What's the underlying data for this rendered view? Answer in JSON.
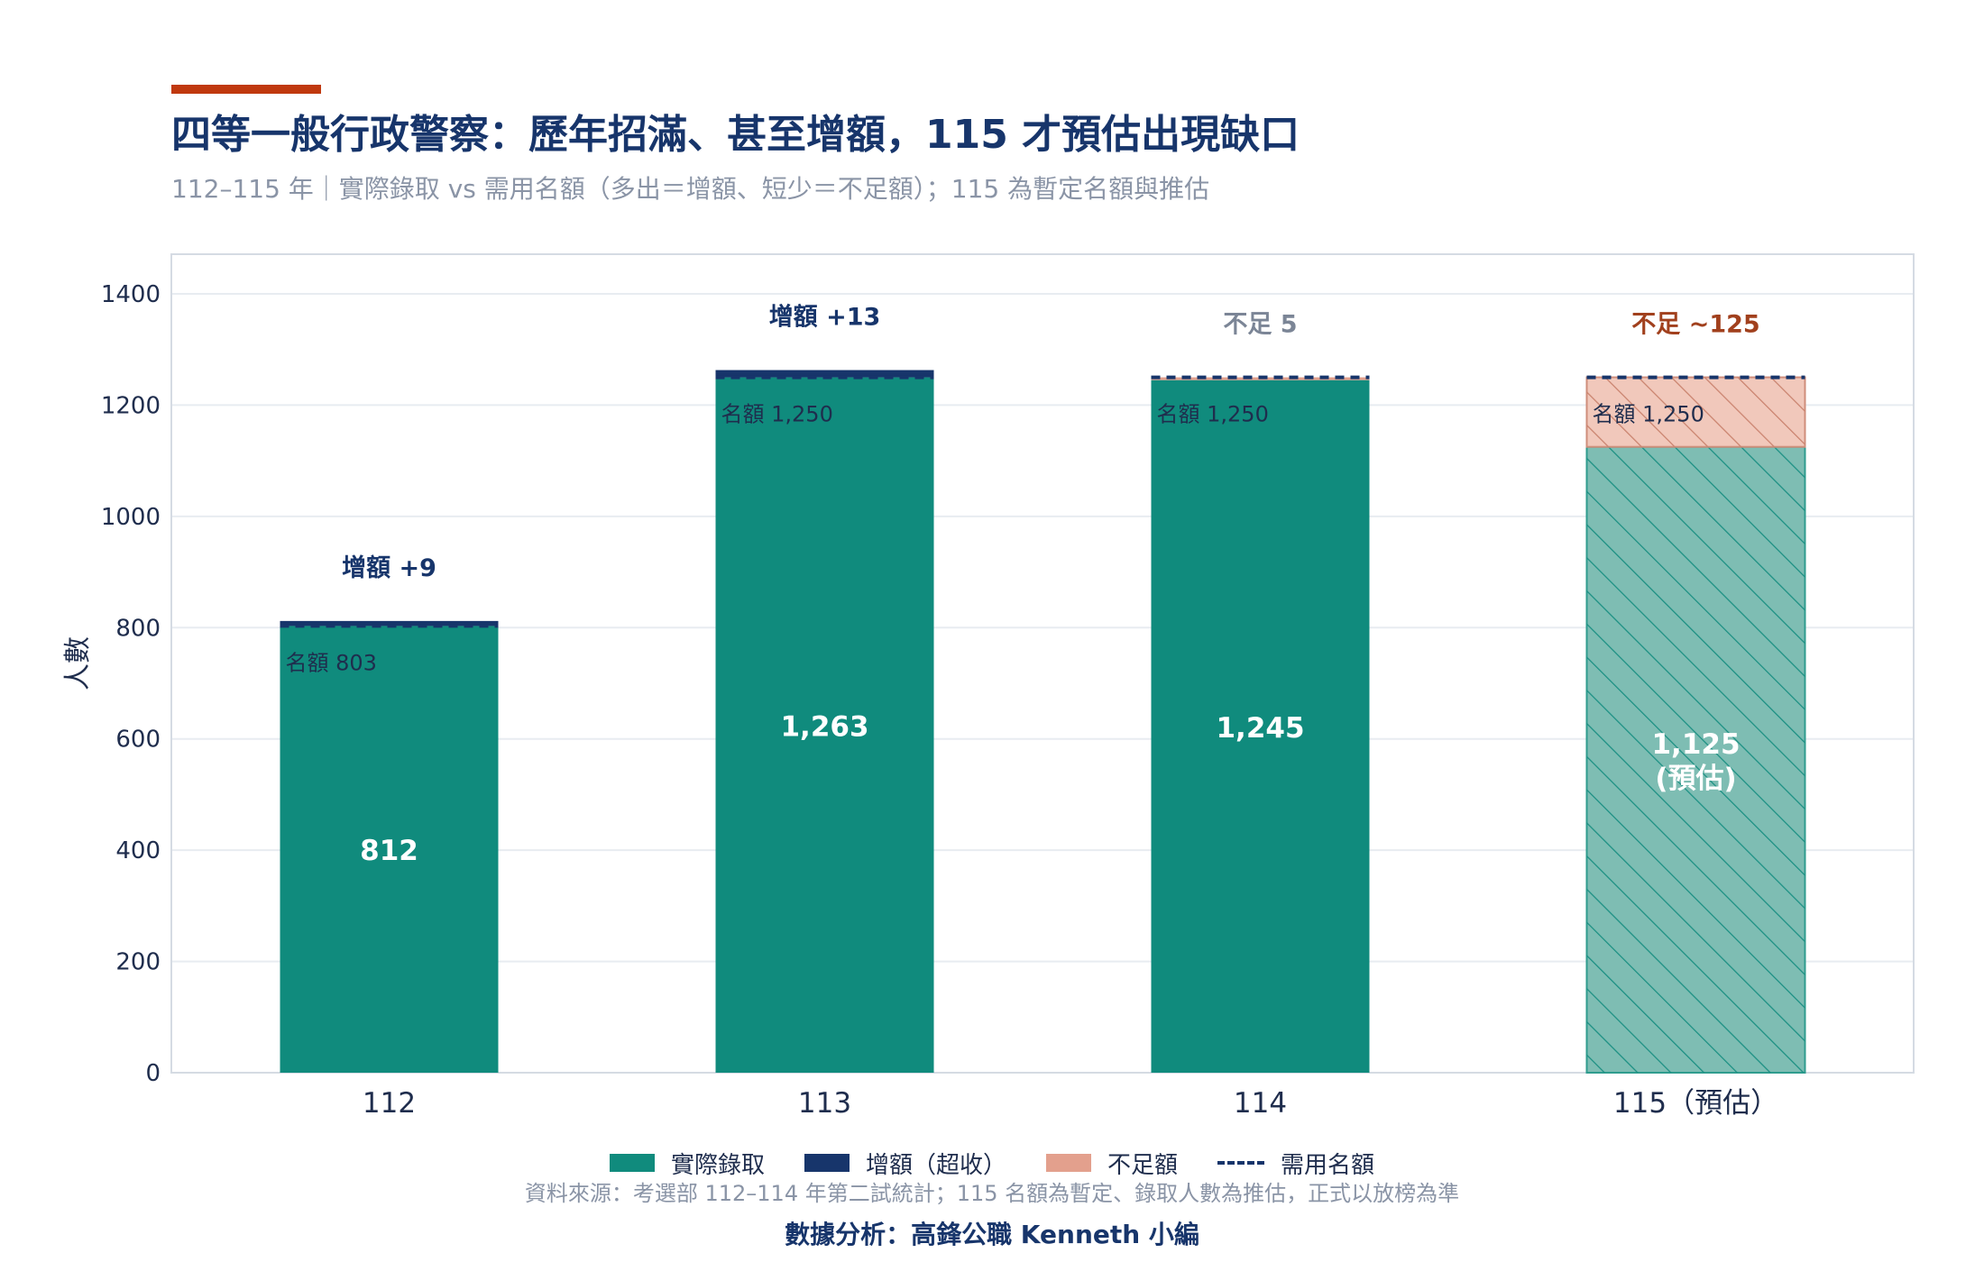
{
  "header": {
    "title": "四等一般行政警察：歷年招滿、甚至增額，115 才預估出現缺口",
    "subtitle": "112–115 年｜實際錄取 vs 需用名額（多出＝增額、短少＝不足額）；115 為暫定名額與推估"
  },
  "colors": {
    "admitted": "#108b7d",
    "surplus": "#17356b",
    "shortfall": "#e3a08d",
    "quota_line": "#17356b",
    "accent": "#c0390f",
    "shortfall_label": "#a1401d",
    "neutral_label": "#7b8596"
  },
  "chart_data": {
    "type": "bar",
    "stacked": true,
    "categories": [
      "112",
      "113",
      "114",
      "115（預估）"
    ],
    "series": [
      {
        "name": "實際錄取",
        "values": [
          803,
          1250,
          1245,
          1125
        ]
      },
      {
        "name": "增額（超收）",
        "values": [
          9,
          13,
          0,
          0
        ]
      },
      {
        "name": "不足額",
        "values": [
          0,
          0,
          5,
          125
        ]
      }
    ],
    "quota": [
      803,
      1250,
      1250,
      1250
    ],
    "quota_labels": [
      "名額 803",
      "名額 1,250",
      "名額 1,250",
      "名額 1,250"
    ],
    "bar_labels": [
      "812",
      "1,263",
      "1,245",
      "1,125\n(預估)"
    ],
    "top_labels": [
      "增額 +9",
      "增額 +13",
      "不足 5",
      "不足 ~125"
    ],
    "estimated": [
      false,
      false,
      false,
      true
    ],
    "ylabel": "人數",
    "xlabel": "",
    "ylim": [
      0,
      1480
    ],
    "yticks": [
      0,
      200,
      400,
      600,
      800,
      1000,
      1200,
      1400
    ],
    "grid": true,
    "legend": {
      "placement": "bottom-center",
      "items": [
        "實際錄取",
        "增額（超收）",
        "不足額",
        "需用名額"
      ]
    }
  },
  "footer": {
    "source": "資料來源：考選部 112–114 年第二試統計；115 名額為暫定、錄取人數為推估，正式以放榜為準",
    "credit": "數據分析：高鋒公職 Kenneth 小編"
  }
}
